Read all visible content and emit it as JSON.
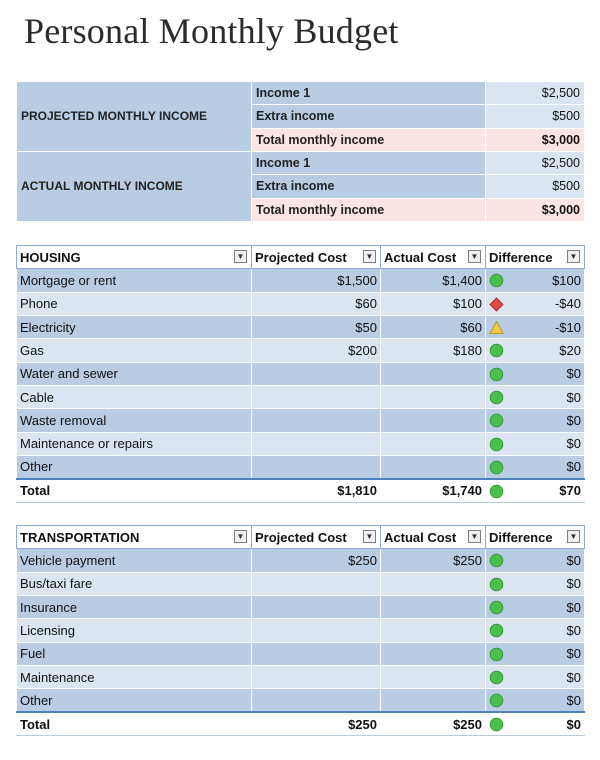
{
  "title": "Personal Monthly Budget",
  "colors": {
    "green": "#4bbf4b",
    "red": "#e04848",
    "yellow": "#f2c84b",
    "header_fill": "#b8cce4",
    "row_fill": "#dbe5f1",
    "total_fill": "#fce4e4"
  },
  "income": {
    "projected": {
      "label": "PROJECTED MONTHLY INCOME",
      "rows": [
        {
          "label": "Income 1",
          "value": "$2,500"
        },
        {
          "label": "Extra income",
          "value": "$500"
        },
        {
          "label": "Total monthly income",
          "value": "$3,000"
        }
      ]
    },
    "actual": {
      "label": "ACTUAL MONTHLY INCOME",
      "rows": [
        {
          "label": "Income 1",
          "value": "$2,500"
        },
        {
          "label": "Extra income",
          "value": "$500"
        },
        {
          "label": "Total monthly income",
          "value": "$3,000"
        }
      ]
    }
  },
  "housing": {
    "headers": [
      "HOUSING",
      "Projected Cost",
      "Actual Cost",
      "Difference"
    ],
    "rows": [
      {
        "item": "Mortgage or rent",
        "projected": "$1,500",
        "actual": "$1,400",
        "indicator": "green",
        "difference": "$100"
      },
      {
        "item": "Phone",
        "projected": "$60",
        "actual": "$100",
        "indicator": "red",
        "difference": "-$40"
      },
      {
        "item": "Electricity",
        "projected": "$50",
        "actual": "$60",
        "indicator": "yellow",
        "difference": "-$10"
      },
      {
        "item": "Gas",
        "projected": "$200",
        "actual": "$180",
        "indicator": "green",
        "difference": "$20"
      },
      {
        "item": "Water and sewer",
        "projected": "",
        "actual": "",
        "indicator": "green",
        "difference": "$0"
      },
      {
        "item": "Cable",
        "projected": "",
        "actual": "",
        "indicator": "green",
        "difference": "$0"
      },
      {
        "item": "Waste removal",
        "projected": "",
        "actual": "",
        "indicator": "green",
        "difference": "$0"
      },
      {
        "item": "Maintenance or repairs",
        "projected": "",
        "actual": "",
        "indicator": "green",
        "difference": "$0"
      },
      {
        "item": "Other",
        "projected": "",
        "actual": "",
        "indicator": "green",
        "difference": "$0"
      }
    ],
    "total": {
      "item": "Total",
      "projected": "$1,810",
      "actual": "$1,740",
      "indicator": "green",
      "difference": "$70"
    }
  },
  "transportation": {
    "headers": [
      "TRANSPORTATION",
      "Projected Cost",
      "Actual Cost",
      "Difference"
    ],
    "rows": [
      {
        "item": "Vehicle payment",
        "projected": "$250",
        "actual": "$250",
        "indicator": "green",
        "difference": "$0"
      },
      {
        "item": "Bus/taxi fare",
        "projected": "",
        "actual": "",
        "indicator": "green",
        "difference": "$0"
      },
      {
        "item": "Insurance",
        "projected": "",
        "actual": "",
        "indicator": "green",
        "difference": "$0"
      },
      {
        "item": "Licensing",
        "projected": "",
        "actual": "",
        "indicator": "green",
        "difference": "$0"
      },
      {
        "item": "Fuel",
        "projected": "",
        "actual": "",
        "indicator": "green",
        "difference": "$0"
      },
      {
        "item": "Maintenance",
        "projected": "",
        "actual": "",
        "indicator": "green",
        "difference": "$0"
      },
      {
        "item": "Other",
        "projected": "",
        "actual": "",
        "indicator": "green",
        "difference": "$0"
      }
    ],
    "total": {
      "item": "Total",
      "projected": "$250",
      "actual": "$250",
      "indicator": "green",
      "difference": "$0"
    }
  }
}
